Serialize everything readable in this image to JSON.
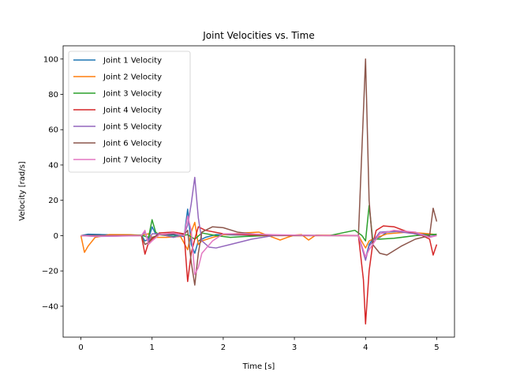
{
  "chart_data": {
    "type": "line",
    "title": "Joint Velocities vs. Time",
    "xlabel": "Time [s]",
    "ylabel": "Velocity [rad/s]",
    "xlim": [
      -0.25,
      5.25
    ],
    "ylim": [
      -57.5,
      107.5
    ],
    "xticks": [
      0,
      1,
      2,
      3,
      4,
      5
    ],
    "yticks": [
      -40,
      -20,
      0,
      20,
      40,
      60,
      80,
      100
    ],
    "grid": false,
    "legend_position": "top-left",
    "series": [
      {
        "name": "Joint 1 Velocity",
        "color": "#1f77b4",
        "points": [
          [
            0,
            0
          ],
          [
            0.1,
            0.8
          ],
          [
            0.3,
            0.6
          ],
          [
            0.6,
            0.3
          ],
          [
            0.85,
            0.2
          ],
          [
            0.9,
            -3
          ],
          [
            0.95,
            -2
          ],
          [
            1.0,
            5
          ],
          [
            1.05,
            1
          ],
          [
            1.1,
            0.5
          ],
          [
            1.3,
            0.4
          ],
          [
            1.45,
            -0.5
          ],
          [
            1.5,
            15
          ],
          [
            1.55,
            -5
          ],
          [
            1.6,
            -10
          ],
          [
            1.65,
            -3
          ],
          [
            1.75,
            -1
          ],
          [
            1.9,
            0.6
          ],
          [
            2.2,
            0.4
          ],
          [
            2.5,
            0.3
          ],
          [
            2.8,
            0.2
          ],
          [
            3.2,
            0.1
          ],
          [
            3.6,
            0.1
          ],
          [
            3.9,
            0.1
          ],
          [
            4.0,
            -13
          ],
          [
            4.05,
            -5
          ],
          [
            4.1,
            -2
          ],
          [
            4.2,
            -1
          ],
          [
            4.3,
            2
          ],
          [
            4.5,
            2.5
          ],
          [
            4.8,
            1
          ],
          [
            4.95,
            0.5
          ],
          [
            5.0,
            0.2
          ]
        ]
      },
      {
        "name": "Joint 2 Velocity",
        "color": "#ff7f0e",
        "points": [
          [
            0,
            0
          ],
          [
            0.05,
            -9.5
          ],
          [
            0.1,
            -6
          ],
          [
            0.2,
            -1
          ],
          [
            0.4,
            0.6
          ],
          [
            0.7,
            0.5
          ],
          [
            0.85,
            0.2
          ],
          [
            0.95,
            1
          ],
          [
            1.0,
            -1
          ],
          [
            1.2,
            -1
          ],
          [
            1.4,
            -0.5
          ],
          [
            1.5,
            -8
          ],
          [
            1.55,
            2
          ],
          [
            1.6,
            7.5
          ],
          [
            1.65,
            -5
          ],
          [
            1.7,
            -3
          ],
          [
            1.85,
            -1
          ],
          [
            2.0,
            0.5
          ],
          [
            2.3,
            1.5
          ],
          [
            2.5,
            2
          ],
          [
            2.7,
            -1
          ],
          [
            2.8,
            -2.5
          ],
          [
            2.9,
            -1
          ],
          [
            3.0,
            0.3
          ],
          [
            3.1,
            0.6
          ],
          [
            3.2,
            -2.5
          ],
          [
            3.3,
            0.3
          ],
          [
            3.6,
            0.2
          ],
          [
            3.9,
            0.1
          ],
          [
            4.0,
            -7
          ],
          [
            4.05,
            -3
          ],
          [
            4.1,
            -2
          ],
          [
            4.3,
            1
          ],
          [
            4.6,
            2
          ],
          [
            4.9,
            1
          ],
          [
            5.0,
            0.5
          ]
        ]
      },
      {
        "name": "Joint 3 Velocity",
        "color": "#2ca02c",
        "points": [
          [
            0,
            0
          ],
          [
            0.4,
            0
          ],
          [
            0.85,
            0.2
          ],
          [
            0.95,
            -1
          ],
          [
            1.0,
            9
          ],
          [
            1.05,
            2
          ],
          [
            1.1,
            0.5
          ],
          [
            1.3,
            -0.5
          ],
          [
            1.5,
            0.5
          ],
          [
            1.6,
            -2
          ],
          [
            1.7,
            1.5
          ],
          [
            1.9,
            0
          ],
          [
            2.1,
            -1
          ],
          [
            2.3,
            -0.5
          ],
          [
            2.6,
            0
          ],
          [
            3.0,
            0.2
          ],
          [
            3.5,
            0.1
          ],
          [
            3.85,
            3
          ],
          [
            3.95,
            0
          ],
          [
            4.0,
            -3
          ],
          [
            4.05,
            17
          ],
          [
            4.1,
            -2
          ],
          [
            4.2,
            -2
          ],
          [
            4.4,
            -1.5
          ],
          [
            4.7,
            0
          ],
          [
            4.9,
            0.5
          ],
          [
            5.0,
            0.8
          ]
        ]
      },
      {
        "name": "Joint 4 Velocity",
        "color": "#d62728",
        "points": [
          [
            0,
            0
          ],
          [
            0.4,
            0
          ],
          [
            0.85,
            0
          ],
          [
            0.9,
            -10.5
          ],
          [
            0.95,
            -4
          ],
          [
            1.0,
            -2
          ],
          [
            1.1,
            1.5
          ],
          [
            1.3,
            2
          ],
          [
            1.45,
            1
          ],
          [
            1.5,
            -26
          ],
          [
            1.55,
            -10
          ],
          [
            1.6,
            -2
          ],
          [
            1.65,
            5
          ],
          [
            1.75,
            3
          ],
          [
            2.0,
            1
          ],
          [
            2.3,
            0.5
          ],
          [
            2.7,
            0
          ],
          [
            3.0,
            0
          ],
          [
            3.5,
            0
          ],
          [
            3.9,
            0
          ],
          [
            3.97,
            -25
          ],
          [
            4.0,
            -50
          ],
          [
            4.05,
            -20
          ],
          [
            4.1,
            -5
          ],
          [
            4.15,
            3
          ],
          [
            4.25,
            5.5
          ],
          [
            4.4,
            5
          ],
          [
            4.6,
            2
          ],
          [
            4.8,
            0
          ],
          [
            4.9,
            -2
          ],
          [
            4.95,
            -11
          ],
          [
            5.0,
            -5
          ]
        ]
      },
      {
        "name": "Joint 5 Velocity",
        "color": "#9467bd",
        "points": [
          [
            0,
            0
          ],
          [
            0.2,
            -0.5
          ],
          [
            0.5,
            -0.3
          ],
          [
            0.85,
            0
          ],
          [
            0.9,
            2
          ],
          [
            0.95,
            -3
          ],
          [
            1.0,
            1
          ],
          [
            1.1,
            1
          ],
          [
            1.3,
            -1
          ],
          [
            1.45,
            0.5
          ],
          [
            1.5,
            6
          ],
          [
            1.55,
            18
          ],
          [
            1.6,
            33
          ],
          [
            1.65,
            10
          ],
          [
            1.7,
            -3
          ],
          [
            1.8,
            -6.5
          ],
          [
            1.9,
            -7
          ],
          [
            2.1,
            -5
          ],
          [
            2.4,
            -2
          ],
          [
            2.7,
            0
          ],
          [
            3.0,
            0.3
          ],
          [
            3.5,
            0
          ],
          [
            3.9,
            0
          ],
          [
            4.0,
            -14
          ],
          [
            4.05,
            -6
          ],
          [
            4.2,
            2
          ],
          [
            4.4,
            2.5
          ],
          [
            4.7,
            1
          ],
          [
            4.9,
            -0.5
          ],
          [
            5.0,
            0
          ]
        ]
      },
      {
        "name": "Joint 6 Velocity",
        "color": "#8c564b",
        "points": [
          [
            0,
            0
          ],
          [
            0.4,
            0
          ],
          [
            0.85,
            0
          ],
          [
            0.9,
            -5
          ],
          [
            0.95,
            -4
          ],
          [
            1.0,
            -1
          ],
          [
            1.1,
            0.5
          ],
          [
            1.3,
            1
          ],
          [
            1.45,
            0.5
          ],
          [
            1.5,
            3
          ],
          [
            1.55,
            -15
          ],
          [
            1.6,
            -28
          ],
          [
            1.65,
            -10
          ],
          [
            1.7,
            2
          ],
          [
            1.85,
            5
          ],
          [
            2.0,
            4.5
          ],
          [
            2.2,
            2
          ],
          [
            2.5,
            0.5
          ],
          [
            3.0,
            0
          ],
          [
            3.5,
            0
          ],
          [
            3.9,
            0
          ],
          [
            3.95,
            50
          ],
          [
            4.0,
            100
          ],
          [
            4.05,
            20
          ],
          [
            4.1,
            -5
          ],
          [
            4.2,
            -10
          ],
          [
            4.3,
            -11
          ],
          [
            4.5,
            -6
          ],
          [
            4.7,
            -2
          ],
          [
            4.9,
            0
          ],
          [
            4.95,
            15.5
          ],
          [
            5.0,
            8
          ]
        ]
      },
      {
        "name": "Joint 7 Velocity",
        "color": "#e377c2",
        "points": [
          [
            0,
            0
          ],
          [
            0.2,
            -0.3
          ],
          [
            0.5,
            -0.2
          ],
          [
            0.85,
            0
          ],
          [
            0.9,
            3
          ],
          [
            0.95,
            -5
          ],
          [
            1.0,
            -3
          ],
          [
            1.1,
            0.5
          ],
          [
            1.3,
            1.5
          ],
          [
            1.45,
            0
          ],
          [
            1.5,
            11
          ],
          [
            1.55,
            3
          ],
          [
            1.6,
            -22
          ],
          [
            1.65,
            -18
          ],
          [
            1.7,
            -10
          ],
          [
            1.85,
            -3
          ],
          [
            2.0,
            1
          ],
          [
            2.3,
            1
          ],
          [
            2.7,
            0.5
          ],
          [
            3.0,
            0.3
          ],
          [
            3.5,
            0
          ],
          [
            3.9,
            0
          ],
          [
            4.0,
            -12
          ],
          [
            4.05,
            -8
          ],
          [
            4.2,
            1
          ],
          [
            4.4,
            3
          ],
          [
            4.7,
            2
          ],
          [
            4.9,
            -1
          ],
          [
            5.0,
            0
          ]
        ]
      }
    ]
  }
}
